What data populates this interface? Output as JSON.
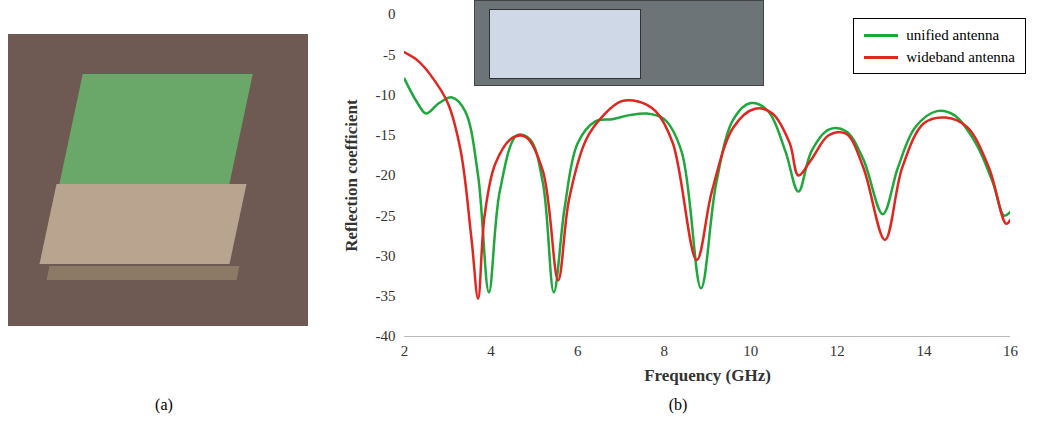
{
  "panel_labels": [
    "(a)",
    "(b)"
  ],
  "chart_data": {
    "type": "line",
    "xlabel": "Frequency (GHz)",
    "ylabel": "Reflection coefficient",
    "xlim": [
      2,
      16
    ],
    "xticks": [
      2,
      4,
      6,
      8,
      10,
      12,
      14,
      16
    ],
    "ylim": [
      -40,
      0
    ],
    "yticks": [
      -40,
      -35,
      -30,
      -25,
      -20,
      -15,
      -10,
      -5,
      0
    ],
    "grid": false,
    "legend": "upper right",
    "series": [
      {
        "name": "unified antenna",
        "color": "#1ea83c",
        "x": [
          2,
          2.3,
          2.5,
          2.8,
          3.1,
          3.4,
          3.7,
          3.95,
          4.2,
          4.6,
          4.9,
          5.2,
          5.45,
          5.7,
          6,
          6.4,
          6.8,
          7.2,
          7.6,
          8,
          8.4,
          8.85,
          9.2,
          9.6,
          10,
          10.4,
          10.8,
          11.1,
          11.4,
          11.8,
          12.2,
          12.6,
          13.05,
          13.4,
          13.8,
          14.3,
          14.7,
          15.2,
          15.6,
          15.85,
          16
        ],
        "values": [
          -8,
          -11,
          -12.3,
          -11,
          -10.3,
          -12,
          -20,
          -34.5,
          -22,
          -15,
          -15.5,
          -21,
          -34.5,
          -24,
          -16,
          -13.3,
          -13,
          -12.5,
          -12.3,
          -13,
          -17,
          -34,
          -21,
          -13,
          -11,
          -12,
          -17,
          -22,
          -17,
          -14.3,
          -14.5,
          -18,
          -24.8,
          -19,
          -14,
          -12,
          -12.5,
          -16,
          -21,
          -25,
          -24.5
        ]
      },
      {
        "name": "wideband antenna",
        "color": "#e0261f",
        "x": [
          2,
          2.3,
          2.6,
          3,
          3.3,
          3.55,
          3.7,
          3.85,
          4.1,
          4.5,
          4.8,
          5.2,
          5.55,
          5.8,
          6.2,
          6.6,
          7,
          7.4,
          7.8,
          8.2,
          8.75,
          9.1,
          9.6,
          10.1,
          10.5,
          10.9,
          11.1,
          11.4,
          11.8,
          12.2,
          12.6,
          13.1,
          13.5,
          14,
          14.5,
          15,
          15.5,
          15.9,
          16
        ],
        "values": [
          -4.7,
          -5.7,
          -7.5,
          -11,
          -17,
          -28,
          -35.3,
          -25,
          -18.5,
          -15.3,
          -15.2,
          -19.5,
          -33,
          -23,
          -15.5,
          -12.5,
          -10.8,
          -10.8,
          -12,
          -16,
          -30.5,
          -22,
          -14,
          -11.7,
          -12.3,
          -16,
          -20,
          -18,
          -15,
          -14.8,
          -19,
          -28,
          -19,
          -13.5,
          -12.8,
          -14,
          -19,
          -26,
          -25.5
        ]
      }
    ]
  }
}
